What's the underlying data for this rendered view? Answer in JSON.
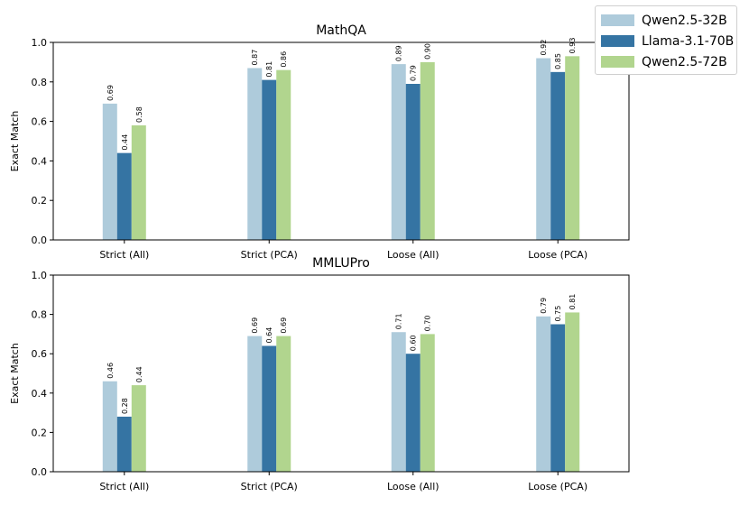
{
  "chart_data": [
    {
      "type": "bar",
      "title": "MathQA",
      "xlabel": "",
      "ylabel": "Exact Match",
      "ylim": [
        0,
        1.0
      ],
      "yticks": [
        "0.0",
        "0.2",
        "0.4",
        "0.6",
        "0.8",
        "1.0"
      ],
      "categories": [
        "Strict (All)",
        "Strict (PCA)",
        "Loose (All)",
        "Loose (PCA)"
      ],
      "series": [
        {
          "name": "Qwen2.5-32B",
          "values": [
            0.69,
            0.87,
            0.89,
            0.92
          ],
          "labels": [
            "0.69",
            "0.87",
            "0.89",
            "0.92"
          ]
        },
        {
          "name": "Llama-3.1-70B",
          "values": [
            0.44,
            0.81,
            0.79,
            0.85
          ],
          "labels": [
            "0.44",
            "0.81",
            "0.79",
            "0.85"
          ]
        },
        {
          "name": "Qwen2.5-72B",
          "values": [
            0.58,
            0.86,
            0.9,
            0.93
          ],
          "labels": [
            "0.58",
            "0.86",
            "0.90",
            "0.93"
          ]
        }
      ]
    },
    {
      "type": "bar",
      "title": "MMLUPro",
      "xlabel": "",
      "ylabel": "Exact Match",
      "ylim": [
        0,
        1.0
      ],
      "yticks": [
        "0.0",
        "0.2",
        "0.4",
        "0.6",
        "0.8",
        "1.0"
      ],
      "categories": [
        "Strict (All)",
        "Strict (PCA)",
        "Loose (All)",
        "Loose (PCA)"
      ],
      "series": [
        {
          "name": "Qwen2.5-32B",
          "values": [
            0.46,
            0.69,
            0.71,
            0.79
          ],
          "labels": [
            "0.46",
            "0.69",
            "0.71",
            "0.79"
          ]
        },
        {
          "name": "Llama-3.1-70B",
          "values": [
            0.28,
            0.64,
            0.6,
            0.75
          ],
          "labels": [
            "0.28",
            "0.64",
            "0.60",
            "0.75"
          ]
        },
        {
          "name": "Qwen2.5-72B",
          "values": [
            0.44,
            0.69,
            0.7,
            0.81
          ],
          "labels": [
            "0.44",
            "0.69",
            "0.70",
            "0.81"
          ]
        }
      ]
    }
  ],
  "legend": {
    "position": "top-right",
    "items": [
      {
        "label": "Qwen2.5-32B",
        "color": "#aecbdb"
      },
      {
        "label": "Llama-3.1-70B",
        "color": "#3574a3"
      },
      {
        "label": "Qwen2.5-72B",
        "color": "#b1d58e"
      }
    ]
  },
  "colors": {
    "series": [
      "#aecbdb",
      "#3574a3",
      "#b1d58e"
    ],
    "axis": "#000000",
    "background": "#ffffff"
  }
}
